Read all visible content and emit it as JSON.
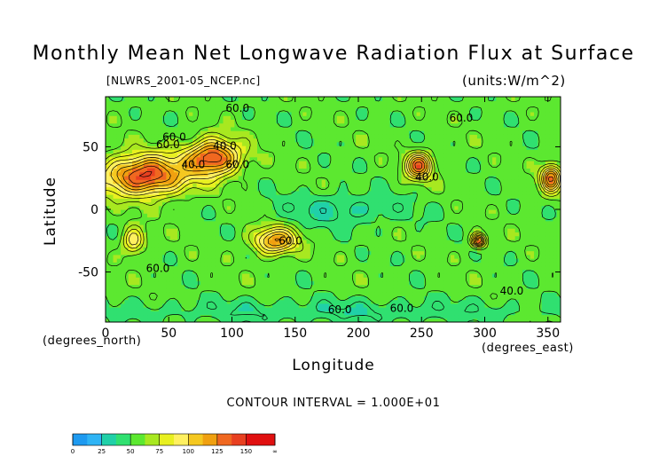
{
  "chart_data": {
    "type": "heatmap",
    "title": "Monthly Mean Net Longwave Radiation Flux at Surface",
    "subtitle": "[NLWRS_2001-05_NCEP.nc]",
    "units": "(units:W/m^2)",
    "xlabel": "Longitude",
    "ylabel": "Latitude",
    "x_units_label": "(degrees_east)",
    "y_units_label": "(degrees_north)",
    "xlim": [
      0,
      360
    ],
    "ylim": [
      -90,
      90
    ],
    "x_ticks": [
      0,
      50,
      100,
      150,
      200,
      250,
      300,
      350
    ],
    "y_ticks": [
      -50,
      0,
      50
    ],
    "contour_interval": "CONTOUR INTERVAL = 1.000E+01",
    "contour_labels": [
      "60.0",
      "60.0",
      "60.0",
      "40.0",
      "40.0",
      "60.0",
      "40.0",
      "60.0",
      "60.0",
      "60.0",
      "40.0",
      "60.0",
      "60.0"
    ],
    "colorbar": {
      "tick_labels": [
        "0",
        "25",
        "50",
        "75",
        "100",
        "125",
        "150",
        "∞"
      ],
      "bins": [
        {
          "lower": 0,
          "upper": 12.5,
          "color": "#1e9af0"
        },
        {
          "lower": 12.5,
          "upper": 25,
          "color": "#2fb4f5"
        },
        {
          "lower": 25,
          "upper": 37.5,
          "color": "#20d0a8"
        },
        {
          "lower": 37.5,
          "upper": 50,
          "color": "#30e070"
        },
        {
          "lower": 50,
          "upper": 62.5,
          "color": "#5ce830"
        },
        {
          "lower": 62.5,
          "upper": 75,
          "color": "#a8e820"
        },
        {
          "lower": 75,
          "upper": 87.5,
          "color": "#e8f020"
        },
        {
          "lower": 87.5,
          "upper": 100,
          "color": "#fff060"
        },
        {
          "lower": 100,
          "upper": 112.5,
          "color": "#f5c820"
        },
        {
          "lower": 112.5,
          "upper": 125,
          "color": "#f0a010"
        },
        {
          "lower": 125,
          "upper": 137.5,
          "color": "#f06820"
        },
        {
          "lower": 137.5,
          "upper": 150,
          "color": "#e84020"
        },
        {
          "lower": 150,
          "upper": 175,
          "color": "#e01010"
        }
      ]
    },
    "regions": [
      {
        "name": "background",
        "value": 55
      },
      {
        "name": "north africa / arabia",
        "lon": [
          0,
          62
        ],
        "lat": [
          12,
          42
        ],
        "value": 145
      },
      {
        "name": "central asia",
        "lon": [
          65,
          105
        ],
        "lat": [
          28,
          55
        ],
        "value": 140
      },
      {
        "name": "western north america",
        "lon": [
          238,
          258
        ],
        "lat": [
          25,
          45
        ],
        "value": 130
      },
      {
        "name": "east atlantic",
        "lon": [
          345,
          360
        ],
        "lat": [
          15,
          35
        ],
        "value": 130
      },
      {
        "name": "southern africa",
        "lon": [
          14,
          30
        ],
        "lat": [
          -35,
          -15
        ],
        "value": 100
      },
      {
        "name": "australia",
        "lon": [
          118,
          150
        ],
        "lat": [
          -35,
          -15
        ],
        "value": 120
      },
      {
        "name": "south america",
        "lon": [
          290,
          300
        ],
        "lat": [
          -30,
          -20
        ],
        "value": 140
      },
      {
        "name": "tropical pacific",
        "lon": [
          140,
          235
        ],
        "lat": [
          -12,
          12
        ],
        "value": 35
      },
      {
        "name": "southern ocean",
        "lon": [
          0,
          360
        ],
        "lat": [
          -90,
          -72
        ],
        "value": 40
      }
    ]
  }
}
